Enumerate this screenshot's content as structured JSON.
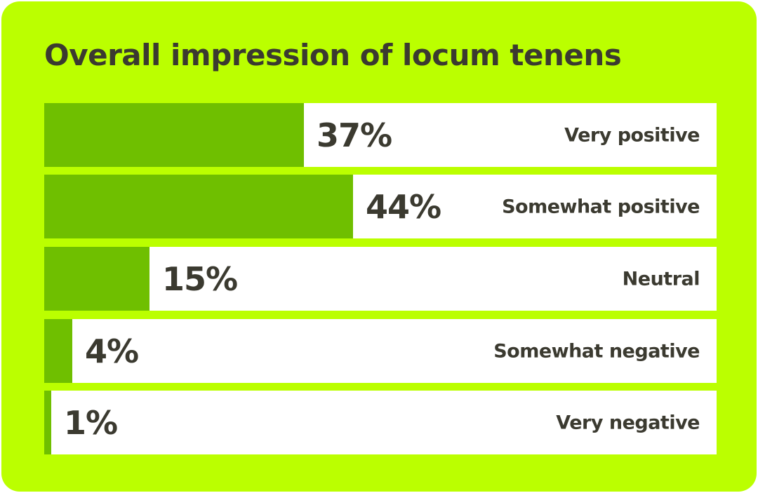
{
  "chart_data": {
    "type": "bar",
    "orientation": "horizontal",
    "title": "Overall impression of locum tenens",
    "categories": [
      "Very positive",
      "Somewhat positive",
      "Neutral",
      "Somewhat negative",
      "Very negative"
    ],
    "values": [
      37,
      44,
      15,
      4,
      1
    ],
    "value_labels": [
      "37%",
      "44%",
      "15%",
      "4%",
      "1%"
    ],
    "unit": "%",
    "grid": false,
    "legend": "none",
    "colors": {
      "background": "#bbff00",
      "bar_fill": "#6fbf00",
      "bar_track": "#ffffff",
      "text": "#3b3a30"
    }
  }
}
